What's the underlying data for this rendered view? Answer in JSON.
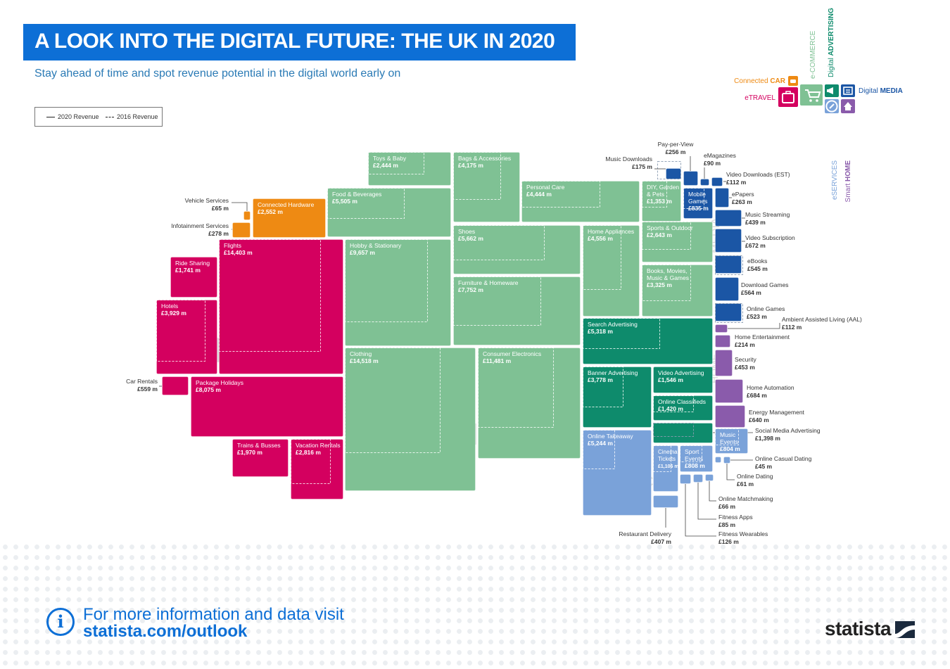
{
  "header": {
    "title": "A LOOK INTO THE DIGITAL FUTURE: THE UK IN 2020",
    "subtitle": "Stay ahead of time and spot revenue potential in the digital world early on"
  },
  "legend": {
    "solid_label": "2020 Revenue",
    "dashed_label": "2016 Revenue"
  },
  "footer": {
    "line1": "For more information and data visit",
    "line2": "statista.com/outlook",
    "brand": "statista"
  },
  "colors": {
    "etravel": "#d4005f",
    "ecommerce": "#7fc194",
    "car": "#ee8a13",
    "advertising": "#0e8b6c",
    "media": "#1b56a5",
    "eservices": "#7aa2d9",
    "smarthome": "#8a5bab",
    "banner": "#0d6fd6"
  },
  "category_key": [
    {
      "id": "car",
      "label": "Connected ",
      "label_bold": "CAR",
      "icon": "car-icon"
    },
    {
      "id": "ecommerce",
      "label": "e-COMMERCE",
      "icon": "cart-icon"
    },
    {
      "id": "advertising",
      "label": "Digital ",
      "label_bold": "ADVERTISING",
      "icon": "megaphone-icon"
    },
    {
      "id": "media",
      "label": "Digital ",
      "label_bold": "MEDIA",
      "icon": "media-icon"
    },
    {
      "id": "etravel",
      "label": "eTRAVEL",
      "icon": "suitcase-icon"
    },
    {
      "id": "eservices",
      "label": "eSERVICES",
      "icon": "services-icon"
    },
    {
      "id": "smarthome",
      "label": "Smart ",
      "label_bold": "HOME",
      "icon": "home-icon"
    }
  ],
  "chart_data": {
    "type": "treemap",
    "watermarks": [
      "eTRAVEL",
      "e-COMMERCE",
      "Connected CAR",
      "Digital",
      "ADVERTISING",
      "eSERVICES",
      "MEDIA",
      "HOME"
    ],
    "series": [
      {
        "category": "Connected CAR",
        "items": [
          {
            "name": "Connected Hardware",
            "value": 2552,
            "label": "£2,552 m"
          },
          {
            "name": "Infotainment Services",
            "value": 278,
            "label": "£278 m"
          },
          {
            "name": "Vehicle Services",
            "value": 65,
            "label": "£65 m"
          }
        ]
      },
      {
        "category": "eTRAVEL",
        "items": [
          {
            "name": "Flights",
            "value": 14403,
            "label": "£14,403 m"
          },
          {
            "name": "Package Holidays",
            "value": 8075,
            "label": "£8,075 m"
          },
          {
            "name": "Hotels",
            "value": 3929,
            "label": "£3,929 m"
          },
          {
            "name": "Vacation Rentals",
            "value": 2816,
            "label": "£2,816 m"
          },
          {
            "name": "Trains & Busses",
            "value": 1970,
            "label": "£1,970 m"
          },
          {
            "name": "Ride Sharing",
            "value": 1741,
            "label": "£1,741 m"
          },
          {
            "name": "Car Rentals",
            "value": 559,
            "label": "£559 m"
          }
        ]
      },
      {
        "category": "e-COMMERCE",
        "items": [
          {
            "name": "Clothing",
            "value": 14518,
            "label": "£14,518 m"
          },
          {
            "name": "Consumer Electronics",
            "value": 11481,
            "label": "£11,481 m"
          },
          {
            "name": "Hobby & Stationary",
            "value": 9657,
            "label": "£9,657 m"
          },
          {
            "name": "Furniture & Homeware",
            "value": 7752,
            "label": "£7,752 m"
          },
          {
            "name": "Shoes",
            "value": 5662,
            "label": "£5,662 m"
          },
          {
            "name": "Food & Beverages",
            "value": 5505,
            "label": "£5,505 m"
          },
          {
            "name": "Home Appliances",
            "value": 4556,
            "label": "£4,556 m"
          },
          {
            "name": "Personal Care",
            "value": 4444,
            "label": "£4,444 m"
          },
          {
            "name": "Bags & Accessories",
            "value": 4175,
            "label": "£4,175 m"
          },
          {
            "name": "Books, Movies, Music & Games",
            "value": 3325,
            "label": "£3,325 m"
          },
          {
            "name": "Sports & Outdoor",
            "value": 2643,
            "label": "£2,643 m"
          },
          {
            "name": "Toys & Baby",
            "value": 2444,
            "label": "£2,444 m"
          },
          {
            "name": "DIY, Garden & Pets",
            "value": 1353,
            "label": "£1,353 m"
          }
        ]
      },
      {
        "category": "Digital ADVERTISING",
        "items": [
          {
            "name": "Search Advertising",
            "value": 5318,
            "label": "£5,318 m"
          },
          {
            "name": "Banner Advertising",
            "value": 3778,
            "label": "£3,778 m"
          },
          {
            "name": "Video Advertising",
            "value": 1546,
            "label": "£1,546 m"
          },
          {
            "name": "Online Classifieds",
            "value": 1420,
            "label": "£1,420 m"
          },
          {
            "name": "Social Media Advertising",
            "value": 1398,
            "label": "£1,398 m"
          }
        ]
      },
      {
        "category": "eSERVICES",
        "items": [
          {
            "name": "Online Takeaway",
            "value": 5244,
            "label": "£5,244 m"
          },
          {
            "name": "Cinema Tickets",
            "value": 1106,
            "label": "£1,106 m"
          },
          {
            "name": "Sport Events",
            "value": 808,
            "label": "£808 m"
          },
          {
            "name": "Music Events",
            "value": 804,
            "label": "£804 m"
          },
          {
            "name": "Restaurant Delivery",
            "value": 407,
            "label": "£407 m"
          },
          {
            "name": "Fitness Wearables",
            "value": 126,
            "label": "£126 m"
          },
          {
            "name": "Fitness Apps",
            "value": 85,
            "label": "£85 m"
          },
          {
            "name": "Online Matchmaking",
            "value": 66,
            "label": "£66 m"
          },
          {
            "name": "Online Dating",
            "value": 61,
            "label": "£61 m"
          },
          {
            "name": "Online Casual Dating",
            "value": 45,
            "label": "£45 m"
          }
        ]
      },
      {
        "category": "Digital MEDIA",
        "items": [
          {
            "name": "Mobile Games",
            "value": 835,
            "label": "£835 m"
          },
          {
            "name": "Video Subscription",
            "value": 672,
            "label": "£672 m"
          },
          {
            "name": "Download Games",
            "value": 564,
            "label": "£564 m"
          },
          {
            "name": "eBooks",
            "value": 545,
            "label": "£545 m"
          },
          {
            "name": "Online Games",
            "value": 523,
            "label": "£523 m"
          },
          {
            "name": "Music Streaming",
            "value": 439,
            "label": "£439 m"
          },
          {
            "name": "ePapers",
            "value": 263,
            "label": "£263 m"
          },
          {
            "name": "Pay-per-View",
            "value": 256,
            "label": "£256 m"
          },
          {
            "name": "Music Downloads",
            "value": 175,
            "label": "£175 m"
          },
          {
            "name": "Video Downloads (EST)",
            "value": 112,
            "label": "£112 m"
          },
          {
            "name": "eMagazines",
            "value": 90,
            "label": "£90 m"
          }
        ]
      },
      {
        "category": "Smart HOME",
        "items": [
          {
            "name": "Home Automation",
            "value": 684,
            "label": "£684 m"
          },
          {
            "name": "Energy Management",
            "value": 640,
            "label": "£640 m"
          },
          {
            "name": "Security",
            "value": 453,
            "label": "£453 m"
          },
          {
            "name": "Home Entertainment",
            "value": 214,
            "label": "£214 m"
          },
          {
            "name": "Ambient Assisted Living (AAL)",
            "value": 112,
            "label": "£112 m"
          }
        ]
      }
    ]
  }
}
